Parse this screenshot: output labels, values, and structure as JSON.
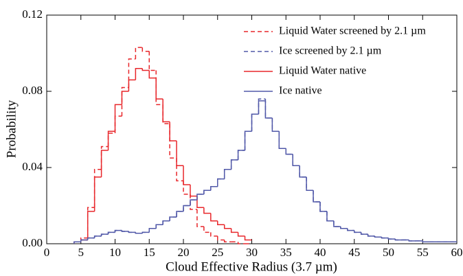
{
  "chart_data": {
    "type": "histogram",
    "xlabel": "Cloud Effective Radius (3.7 µm)",
    "ylabel": "Probability",
    "xlim": [
      0,
      60
    ],
    "xticks": [
      0,
      5,
      10,
      15,
      20,
      25,
      30,
      35,
      40,
      45,
      50,
      55,
      60
    ],
    "ylim": [
      0,
      0.12
    ],
    "yticks": [
      {
        "value": 0,
        "label": "0.00"
      },
      0.04,
      0.08,
      0.12
    ],
    "legend": "upper right",
    "series": [
      {
        "name": "Liquid Water screened by 2.1 µm",
        "color": "#e8262a",
        "dashed": true,
        "bins": [
          4,
          5,
          6,
          7,
          8,
          9,
          10,
          11,
          12,
          13,
          14,
          15,
          16,
          17,
          18,
          19,
          20,
          21,
          22,
          23,
          24,
          25,
          26,
          27,
          28,
          29,
          30
        ],
        "values": [
          0.001,
          0.003,
          0.019,
          0.039,
          0.051,
          0.058,
          0.067,
          0.082,
          0.097,
          0.103,
          0.101,
          0.091,
          0.073,
          0.063,
          0.045,
          0.033,
          0.026,
          0.018,
          0.009,
          0.006,
          0.004,
          0.002,
          0.001,
          0.001,
          0,
          0
        ]
      },
      {
        "name": "Ice screened by 2.1 µm",
        "color": "#5058a8",
        "dashed": true,
        "bins": [
          4,
          5,
          6,
          7,
          8,
          9,
          10,
          11,
          12,
          13,
          14,
          15,
          16,
          17,
          18,
          19,
          20,
          21,
          22,
          23,
          24,
          25,
          26,
          27,
          28,
          29,
          30,
          31,
          32,
          33,
          34,
          35,
          36,
          37,
          38,
          39,
          40,
          41,
          42,
          43,
          44,
          45,
          46,
          47,
          48,
          49,
          50,
          51,
          52,
          53,
          54,
          55,
          56,
          57,
          58,
          59,
          60
        ],
        "values": [
          0.001,
          0.002,
          0.003,
          0.004,
          0.005,
          0.006,
          0.007,
          0.0065,
          0.006,
          0.0055,
          0.006,
          0.008,
          0.01,
          0.012,
          0.014,
          0.017,
          0.02,
          0.023,
          0.026,
          0.028,
          0.03,
          0.034,
          0.039,
          0.044,
          0.049,
          0.059,
          0.068,
          0.076,
          0.066,
          0.059,
          0.05,
          0.047,
          0.041,
          0.035,
          0.028,
          0.022,
          0.017,
          0.012,
          0.009,
          0.008,
          0.007,
          0.006,
          0.005,
          0.004,
          0.0035,
          0.003,
          0.0025,
          0.002,
          0.002,
          0.0015,
          0.0015,
          0.001,
          0.001,
          0.001,
          0.001,
          0.001
        ]
      },
      {
        "name": "Liquid Water native",
        "color": "#e8262a",
        "dashed": false,
        "bins": [
          4,
          5,
          6,
          7,
          8,
          9,
          10,
          11,
          12,
          13,
          14,
          15,
          16,
          17,
          18,
          19,
          20,
          21,
          22,
          23,
          24,
          25,
          26,
          27,
          28,
          29,
          30
        ],
        "values": [
          0.001,
          0.002,
          0.017,
          0.035,
          0.049,
          0.059,
          0.073,
          0.08,
          0.086,
          0.092,
          0.091,
          0.087,
          0.076,
          0.064,
          0.054,
          0.041,
          0.031,
          0.025,
          0.019,
          0.016,
          0.012,
          0.01,
          0.008,
          0.006,
          0.004,
          0.002
        ]
      },
      {
        "name": "Ice native",
        "color": "#5058a8",
        "dashed": false,
        "bins": [
          4,
          5,
          6,
          7,
          8,
          9,
          10,
          11,
          12,
          13,
          14,
          15,
          16,
          17,
          18,
          19,
          20,
          21,
          22,
          23,
          24,
          25,
          26,
          27,
          28,
          29,
          30,
          31,
          32,
          33,
          34,
          35,
          36,
          37,
          38,
          39,
          40,
          41,
          42,
          43,
          44,
          45,
          46,
          47,
          48,
          49,
          50,
          51,
          52,
          53,
          54,
          55,
          56,
          57,
          58,
          59,
          60
        ],
        "values": [
          0.001,
          0.002,
          0.003,
          0.004,
          0.005,
          0.006,
          0.007,
          0.0065,
          0.006,
          0.0055,
          0.006,
          0.008,
          0.01,
          0.012,
          0.014,
          0.017,
          0.02,
          0.023,
          0.026,
          0.028,
          0.03,
          0.034,
          0.039,
          0.044,
          0.049,
          0.059,
          0.068,
          0.075,
          0.066,
          0.059,
          0.05,
          0.047,
          0.041,
          0.035,
          0.028,
          0.022,
          0.017,
          0.012,
          0.009,
          0.008,
          0.007,
          0.006,
          0.005,
          0.004,
          0.0035,
          0.003,
          0.0025,
          0.002,
          0.002,
          0.0015,
          0.0015,
          0.001,
          0.001,
          0.001,
          0.001,
          0.001
        ]
      }
    ]
  }
}
